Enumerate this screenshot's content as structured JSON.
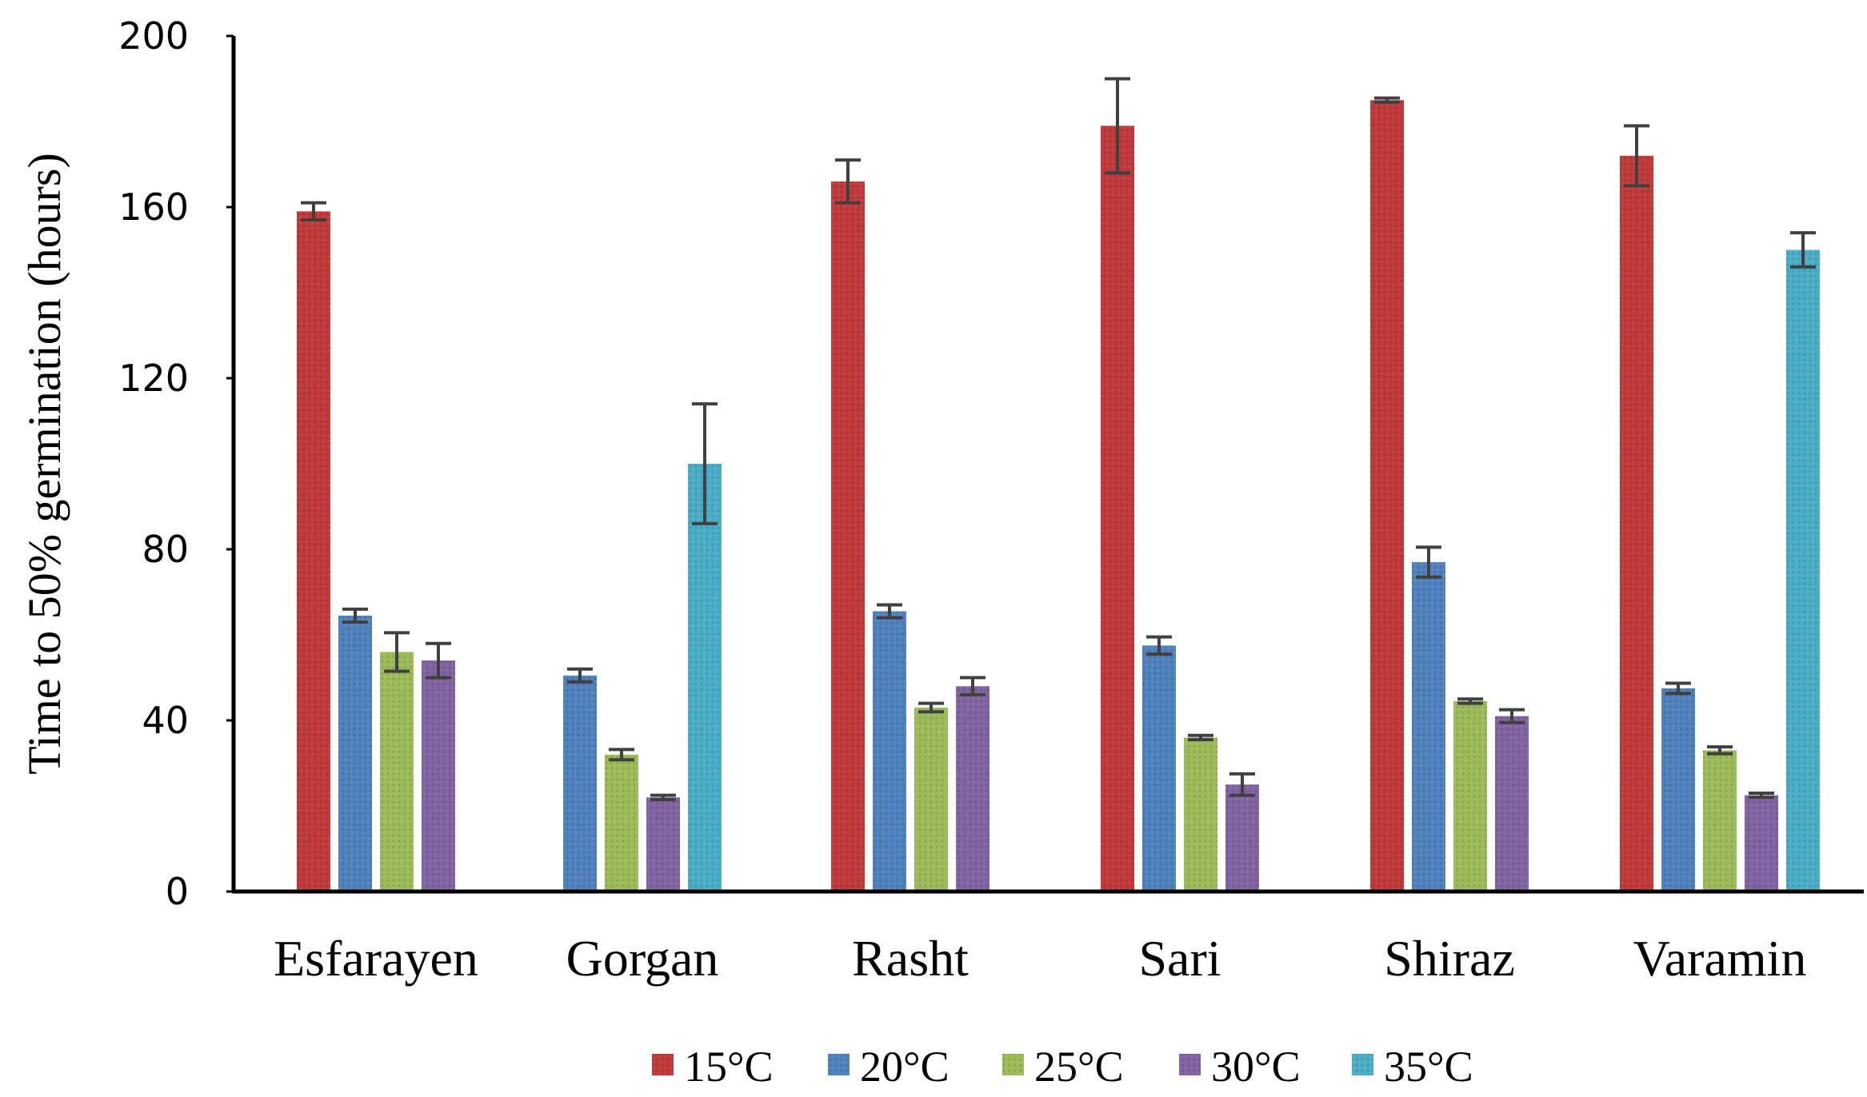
{
  "chart_data": {
    "type": "bar",
    "title": "",
    "xlabel": "",
    "ylabel": "Time to 50% germination (hours)",
    "ylim": [
      0,
      200
    ],
    "yticks": [
      0,
      40,
      80,
      120,
      160,
      200
    ],
    "grid": false,
    "legend_position": "bottom",
    "categories": [
      "Esfarayen",
      "Gorgan",
      "Rasht",
      "Sari",
      "Shiraz",
      "Varamin"
    ],
    "series": [
      {
        "name": "15°C",
        "color": "#c0393b",
        "values": [
          159,
          null,
          166,
          179,
          185,
          172
        ],
        "errors": [
          2,
          null,
          5,
          11,
          0.5,
          7
        ]
      },
      {
        "name": "20°C",
        "color": "#4f81bd",
        "values": [
          64.5,
          50.5,
          65.5,
          57.5,
          77,
          47.5
        ],
        "errors": [
          1.5,
          1.5,
          1.5,
          2,
          3.5,
          1.2
        ]
      },
      {
        "name": "25°C",
        "color": "#9bbb59",
        "values": [
          56,
          32,
          43,
          36,
          44.5,
          33
        ],
        "errors": [
          4.5,
          1.2,
          1,
          0.5,
          0.5,
          0.8
        ]
      },
      {
        "name": "30°C",
        "color": "#8064a2",
        "values": [
          54,
          22,
          48,
          25,
          41,
          22.5
        ],
        "errors": [
          4,
          0.5,
          2,
          2.5,
          1.5,
          0.5
        ]
      },
      {
        "name": "35°C",
        "color": "#4bacc6",
        "values": [
          null,
          100,
          null,
          null,
          null,
          150
        ],
        "errors": [
          null,
          14,
          null,
          null,
          null,
          4
        ]
      }
    ]
  }
}
